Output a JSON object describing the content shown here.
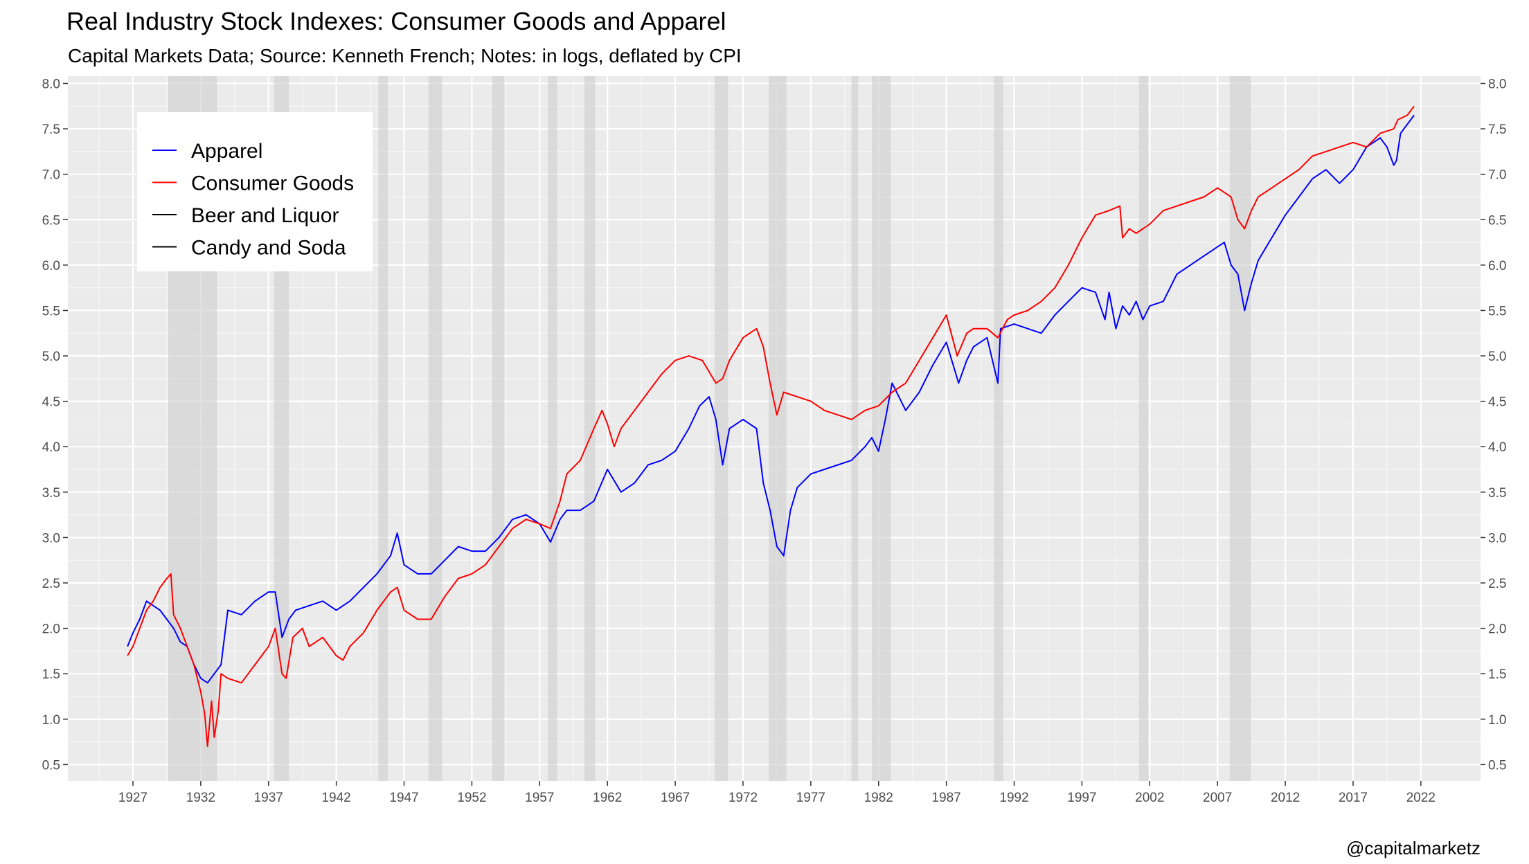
{
  "chart_data": {
    "type": "line",
    "title": "Real Industry Stock Indexes: Consumer Goods and Apparel",
    "subtitle": "Capital Markets Data; Source: Kenneth French; Notes: in logs, deflated by CPI",
    "caption": "@capitalmarketz",
    "xlabel": "",
    "ylabel": "",
    "xlim": [
      1922.2,
      2026.4
    ],
    "ylim": [
      0.32,
      8.08
    ],
    "x_ticks": [
      1927,
      1932,
      1937,
      1942,
      1947,
      1952,
      1957,
      1962,
      1967,
      1972,
      1977,
      1982,
      1987,
      1992,
      1997,
      2002,
      2007,
      2012,
      2017,
      2022
    ],
    "x_tick_labels": [
      "1927",
      "1932",
      "1937",
      "1942",
      "1947",
      "1952",
      "1957",
      "1962",
      "1967",
      "1972",
      "1977",
      "1982",
      "1987",
      "1992",
      "1997",
      "2002",
      "2007",
      "2012",
      "2017",
      "2022"
    ],
    "y_ticks": [
      0.5,
      1.0,
      1.5,
      2.0,
      2.5,
      3.0,
      3.5,
      4.0,
      4.5,
      5.0,
      5.5,
      6.0,
      6.5,
      7.0,
      7.5,
      8.0
    ],
    "y_tick_labels": [
      "0.5",
      "1.0",
      "1.5",
      "2.0",
      "2.5",
      "3.0",
      "3.5",
      "4.0",
      "4.5",
      "5.0",
      "5.5",
      "6.0",
      "6.5",
      "7.0",
      "7.5",
      "8.0"
    ],
    "secondary_y_axis": true,
    "grid": true,
    "legend_position": "top-left",
    "recessions": [
      [
        1929.6,
        1933.2
      ],
      [
        1937.4,
        1938.5
      ],
      [
        1945.1,
        1945.8
      ],
      [
        1948.8,
        1949.8
      ],
      [
        1953.5,
        1954.4
      ],
      [
        1957.6,
        1958.3
      ],
      [
        1960.3,
        1961.1
      ],
      [
        1969.9,
        1970.9
      ],
      [
        1973.9,
        1975.2
      ],
      [
        1980.0,
        1980.5
      ],
      [
        1981.5,
        1982.9
      ],
      [
        1990.5,
        1991.2
      ],
      [
        2001.2,
        2001.9
      ],
      [
        2007.9,
        2009.5
      ]
    ],
    "series": [
      {
        "name": "Apparel",
        "color": "#0000ff",
        "x": [
          1926.6,
          1927.0,
          1927.5,
          1928.0,
          1928.5,
          1929.0,
          1929.5,
          1930.0,
          1930.5,
          1931.0,
          1931.5,
          1932.0,
          1932.5,
          1933.0,
          1933.5,
          1934.0,
          1935.0,
          1936.0,
          1937.0,
          1937.5,
          1938.0,
          1938.5,
          1939.0,
          1940.0,
          1941.0,
          1942.0,
          1943.0,
          1944.0,
          1945.0,
          1946.0,
          1946.5,
          1947.0,
          1948.0,
          1949.0,
          1950.0,
          1951.0,
          1952.0,
          1953.0,
          1954.0,
          1955.0,
          1956.0,
          1957.0,
          1957.8,
          1958.5,
          1959.0,
          1960.0,
          1961.0,
          1962.0,
          1963.0,
          1964.0,
          1965.0,
          1966.0,
          1967.0,
          1968.0,
          1968.8,
          1969.5,
          1970.0,
          1970.5,
          1971.0,
          1972.0,
          1973.0,
          1973.5,
          1974.0,
          1974.5,
          1975.0,
          1975.5,
          1976.0,
          1977.0,
          1978.0,
          1979.0,
          1980.0,
          1981.0,
          1981.5,
          1982.0,
          1982.5,
          1983.0,
          1984.0,
          1985.0,
          1986.0,
          1987.0,
          1987.9,
          1988.5,
          1989.0,
          1990.0,
          1990.8,
          1991.0,
          1992.0,
          1993.0,
          1994.0,
          1995.0,
          1996.0,
          1997.0,
          1998.0,
          1998.7,
          1999.0,
          1999.5,
          2000.0,
          2000.5,
          2001.0,
          2001.5,
          2002.0,
          2003.0,
          2004.0,
          2005.0,
          2006.0,
          2007.0,
          2007.5,
          2008.0,
          2008.5,
          2009.0,
          2009.5,
          2010.0,
          2011.0,
          2012.0,
          2013.0,
          2014.0,
          2015.0,
          2016.0,
          2017.0,
          2018.0,
          2019.0,
          2019.5,
          2020.0,
          2020.2,
          2020.5,
          2021.0,
          2021.5
        ],
        "values": [
          1.8,
          1.95,
          2.1,
          2.3,
          2.25,
          2.2,
          2.1,
          2.0,
          1.85,
          1.8,
          1.6,
          1.45,
          1.4,
          1.5,
          1.6,
          2.2,
          2.15,
          2.3,
          2.4,
          2.4,
          1.9,
          2.1,
          2.2,
          2.25,
          2.3,
          2.2,
          2.3,
          2.45,
          2.6,
          2.8,
          3.05,
          2.7,
          2.6,
          2.6,
          2.75,
          2.9,
          2.85,
          2.85,
          3.0,
          3.2,
          3.25,
          3.15,
          2.95,
          3.2,
          3.3,
          3.3,
          3.4,
          3.75,
          3.5,
          3.6,
          3.8,
          3.85,
          3.95,
          4.2,
          4.45,
          4.55,
          4.3,
          3.8,
          4.2,
          4.3,
          4.2,
          3.6,
          3.3,
          2.9,
          2.8,
          3.3,
          3.55,
          3.7,
          3.75,
          3.8,
          3.85,
          4.0,
          4.1,
          3.95,
          4.3,
          4.7,
          4.4,
          4.6,
          4.9,
          5.15,
          4.7,
          4.95,
          5.1,
          5.2,
          4.7,
          5.3,
          5.35,
          5.3,
          5.25,
          5.45,
          5.6,
          5.75,
          5.7,
          5.4,
          5.7,
          5.3,
          5.55,
          5.45,
          5.6,
          5.4,
          5.55,
          5.6,
          5.9,
          6.0,
          6.1,
          6.2,
          6.25,
          6.0,
          5.9,
          5.5,
          5.8,
          6.05,
          6.3,
          6.55,
          6.75,
          6.95,
          7.05,
          6.9,
          7.05,
          7.3,
          7.4,
          7.3,
          7.1,
          7.15,
          7.45,
          7.55,
          7.65
        ]
      },
      {
        "name": "Consumer Goods",
        "color": "#ff0000",
        "x": [
          1926.6,
          1927.0,
          1927.5,
          1928.0,
          1928.5,
          1929.0,
          1929.5,
          1929.8,
          1930.0,
          1930.5,
          1931.0,
          1931.5,
          1932.0,
          1932.3,
          1932.5,
          1932.8,
          1933.0,
          1933.3,
          1933.5,
          1934.0,
          1935.0,
          1936.0,
          1937.0,
          1937.5,
          1938.0,
          1938.3,
          1938.8,
          1939.5,
          1940.0,
          1941.0,
          1942.0,
          1942.5,
          1943.0,
          1944.0,
          1945.0,
          1946.0,
          1946.5,
          1947.0,
          1948.0,
          1949.0,
          1950.0,
          1951.0,
          1952.0,
          1953.0,
          1954.0,
          1955.0,
          1956.0,
          1957.0,
          1957.8,
          1958.5,
          1959.0,
          1960.0,
          1961.0,
          1961.6,
          1962.0,
          1962.5,
          1963.0,
          1964.0,
          1965.0,
          1966.0,
          1967.0,
          1968.0,
          1969.0,
          1970.0,
          1970.5,
          1971.0,
          1972.0,
          1973.0,
          1973.5,
          1974.0,
          1974.5,
          1975.0,
          1976.0,
          1977.0,
          1978.0,
          1979.0,
          1980.0,
          1981.0,
          1982.0,
          1983.0,
          1984.0,
          1985.0,
          1986.0,
          1987.0,
          1987.8,
          1988.5,
          1989.0,
          1990.0,
          1990.8,
          1991.5,
          1992.0,
          1993.0,
          1994.0,
          1995.0,
          1996.0,
          1997.0,
          1998.0,
          1999.0,
          1999.8,
          2000.0,
          2000.5,
          2001.0,
          2002.0,
          2003.0,
          2004.0,
          2005.0,
          2006.0,
          2007.0,
          2007.5,
          2008.0,
          2008.5,
          2009.0,
          2009.5,
          2010.0,
          2011.0,
          2012.0,
          2013.0,
          2014.0,
          2015.0,
          2016.0,
          2017.0,
          2018.0,
          2019.0,
          2020.0,
          2020.3,
          2021.0,
          2021.5
        ],
        "values": [
          1.7,
          1.8,
          2.0,
          2.2,
          2.3,
          2.45,
          2.55,
          2.6,
          2.15,
          2.0,
          1.8,
          1.6,
          1.3,
          1.05,
          0.7,
          1.2,
          0.8,
          1.1,
          1.5,
          1.45,
          1.4,
          1.6,
          1.8,
          2.0,
          1.5,
          1.45,
          1.9,
          2.0,
          1.8,
          1.9,
          1.7,
          1.65,
          1.8,
          1.95,
          2.2,
          2.4,
          2.45,
          2.2,
          2.1,
          2.1,
          2.35,
          2.55,
          2.6,
          2.7,
          2.9,
          3.1,
          3.2,
          3.15,
          3.1,
          3.4,
          3.7,
          3.85,
          4.2,
          4.4,
          4.25,
          4.0,
          4.2,
          4.4,
          4.6,
          4.8,
          4.95,
          5.0,
          4.95,
          4.7,
          4.75,
          4.95,
          5.2,
          5.3,
          5.1,
          4.7,
          4.35,
          4.6,
          4.55,
          4.5,
          4.4,
          4.35,
          4.3,
          4.4,
          4.45,
          4.6,
          4.7,
          4.95,
          5.2,
          5.45,
          5.0,
          5.25,
          5.3,
          5.3,
          5.2,
          5.4,
          5.45,
          5.5,
          5.6,
          5.75,
          6.0,
          6.3,
          6.55,
          6.6,
          6.65,
          6.3,
          6.4,
          6.35,
          6.45,
          6.6,
          6.65,
          6.7,
          6.75,
          6.85,
          6.8,
          6.75,
          6.5,
          6.4,
          6.6,
          6.75,
          6.85,
          6.95,
          7.05,
          7.2,
          7.25,
          7.3,
          7.35,
          7.3,
          7.45,
          7.5,
          7.6,
          7.65,
          7.75
        ]
      },
      {
        "name": "Beer and Liquor",
        "color": "#000000",
        "x": [],
        "values": []
      },
      {
        "name": "Candy and Soda",
        "color": "#000000",
        "x": [],
        "values": []
      }
    ]
  }
}
